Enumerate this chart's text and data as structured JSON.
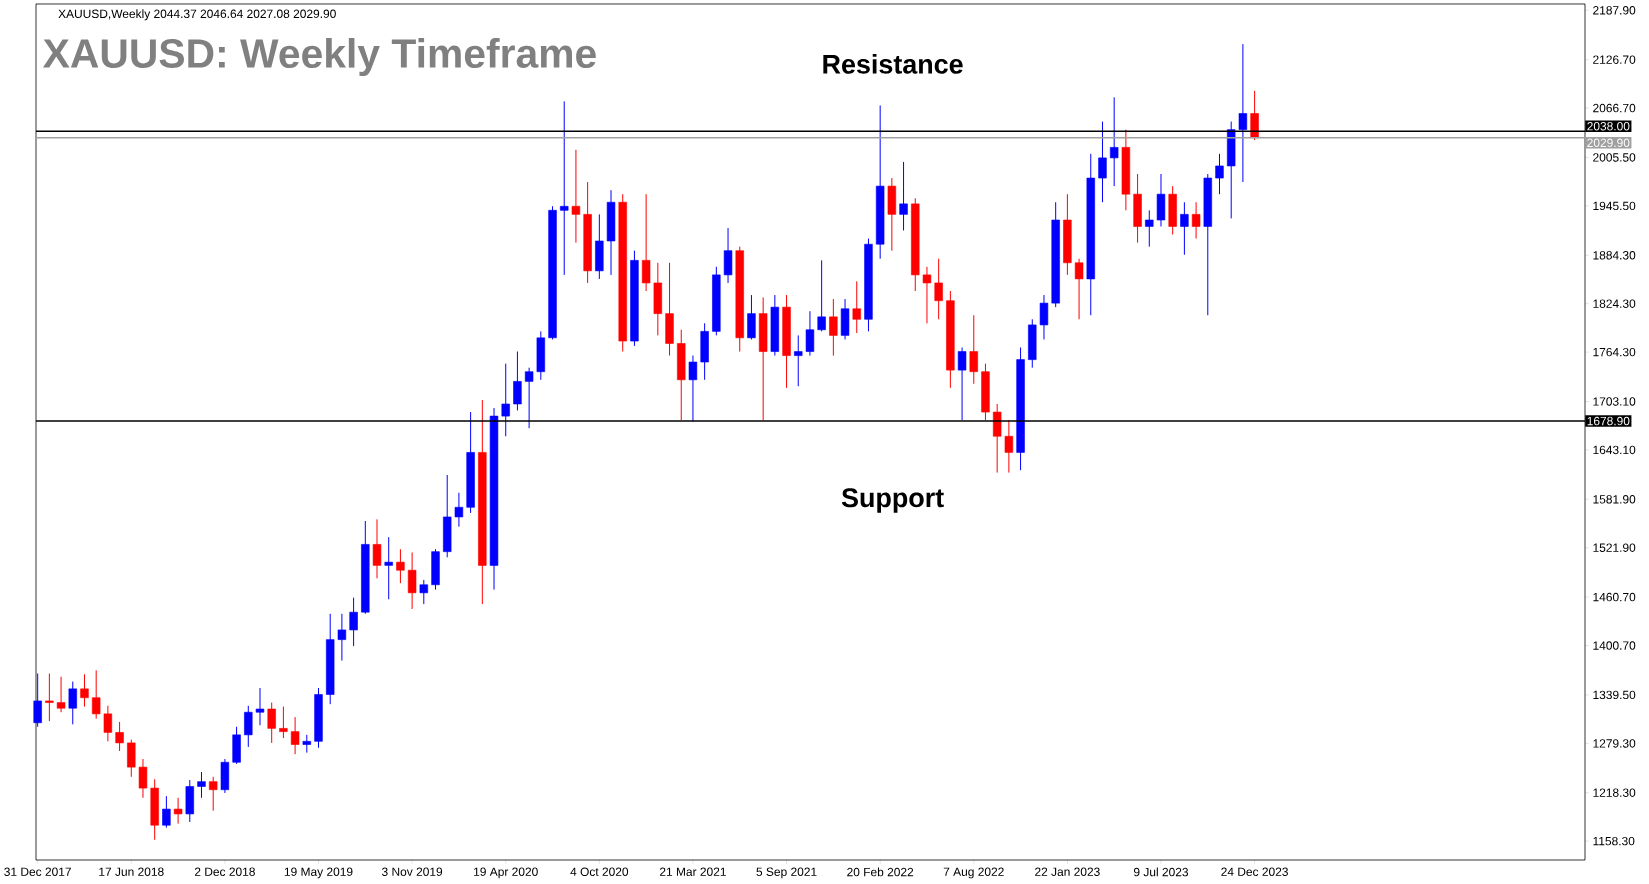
{
  "chart_data": {
    "type": "candlestick",
    "title": "XAUUSD: Weekly Timeframe",
    "annotations": [
      "XAUUSD,Weekly  2044.37 2046.64 2027.08 2029.90",
      "Resistance",
      "Support"
    ],
    "x": [
      "2017-12-31",
      "2018-01-21",
      "2018-02-11",
      "2018-03-04",
      "2018-03-25",
      "2018-04-15",
      "2018-05-06",
      "2018-05-27",
      "2018-06-17",
      "2018-07-08",
      "2018-07-29",
      "2018-08-19",
      "2018-09-09",
      "2018-09-30",
      "2018-10-21",
      "2018-11-11",
      "2018-12-02",
      "2018-12-23",
      "2019-01-13",
      "2019-02-03",
      "2019-02-24",
      "2019-03-17",
      "2019-04-07",
      "2019-04-28",
      "2019-05-19",
      "2019-06-09",
      "2019-06-30",
      "2019-07-21",
      "2019-08-11",
      "2019-09-01",
      "2019-09-22",
      "2019-10-13",
      "2019-11-03",
      "2019-11-24",
      "2019-12-15",
      "2020-01-05",
      "2020-01-26",
      "2020-02-16",
      "2020-03-08",
      "2020-03-29",
      "2020-04-19",
      "2020-05-10",
      "2020-05-31",
      "2020-06-21",
      "2020-07-12",
      "2020-08-02",
      "2020-08-23",
      "2020-09-13",
      "2020-10-04",
      "2020-10-25",
      "2020-11-15",
      "2020-12-06",
      "2020-12-27",
      "2021-01-17",
      "2021-02-07",
      "2021-02-28",
      "2021-03-21",
      "2021-04-11",
      "2021-05-02",
      "2021-05-23",
      "2021-06-13",
      "2021-07-04",
      "2021-07-25",
      "2021-08-15",
      "2021-09-05",
      "2021-09-26",
      "2021-10-17",
      "2021-11-07",
      "2021-11-28",
      "2021-12-19",
      "2022-01-09",
      "2022-01-30",
      "2022-02-20",
      "2022-03-13",
      "2022-04-03",
      "2022-04-24",
      "2022-05-15",
      "2022-06-05",
      "2022-06-26",
      "2022-07-17",
      "2022-08-07",
      "2022-08-28",
      "2022-09-18",
      "2022-10-09",
      "2022-10-30",
      "2022-11-20",
      "2022-12-11",
      "2023-01-01",
      "2023-01-22",
      "2023-02-12",
      "2023-03-05",
      "2023-03-26",
      "2023-04-16",
      "2023-05-07",
      "2023-05-28",
      "2023-06-18",
      "2023-07-09",
      "2023-07-30",
      "2023-08-20",
      "2023-09-10",
      "2023-10-01",
      "2023-10-22",
      "2023-11-12",
      "2023-12-03",
      "2023-12-24"
    ],
    "ohlc": [
      [
        1305,
        1366,
        1300,
        1332
      ],
      [
        1332,
        1366,
        1307,
        1330
      ],
      [
        1330,
        1362,
        1318,
        1323
      ],
      [
        1323,
        1356,
        1303,
        1347
      ],
      [
        1347,
        1365,
        1325,
        1336
      ],
      [
        1336,
        1370,
        1310,
        1316
      ],
      [
        1316,
        1326,
        1282,
        1293
      ],
      [
        1293,
        1306,
        1270,
        1280
      ],
      [
        1280,
        1284,
        1238,
        1250
      ],
      [
        1250,
        1260,
        1212,
        1224
      ],
      [
        1224,
        1235,
        1160,
        1178
      ],
      [
        1178,
        1214,
        1175,
        1198
      ],
      [
        1198,
        1212,
        1180,
        1192
      ],
      [
        1192,
        1234,
        1182,
        1226
      ],
      [
        1226,
        1244,
        1212,
        1232
      ],
      [
        1232,
        1238,
        1196,
        1222
      ],
      [
        1222,
        1260,
        1218,
        1256
      ],
      [
        1256,
        1300,
        1254,
        1290
      ],
      [
        1290,
        1326,
        1275,
        1318
      ],
      [
        1318,
        1348,
        1302,
        1322
      ],
      [
        1322,
        1330,
        1280,
        1298
      ],
      [
        1298,
        1325,
        1286,
        1294
      ],
      [
        1294,
        1312,
        1266,
        1278
      ],
      [
        1278,
        1290,
        1268,
        1282
      ],
      [
        1282,
        1348,
        1274,
        1340
      ],
      [
        1340,
        1440,
        1328,
        1408
      ],
      [
        1408,
        1440,
        1382,
        1420
      ],
      [
        1420,
        1460,
        1400,
        1442
      ],
      [
        1442,
        1555,
        1440,
        1526
      ],
      [
        1526,
        1557,
        1484,
        1500
      ],
      [
        1500,
        1535,
        1458,
        1504
      ],
      [
        1504,
        1520,
        1478,
        1494
      ],
      [
        1494,
        1516,
        1446,
        1466
      ],
      [
        1466,
        1482,
        1452,
        1476
      ],
      [
        1476,
        1520,
        1470,
        1517
      ],
      [
        1517,
        1612,
        1510,
        1560
      ],
      [
        1560,
        1590,
        1548,
        1572
      ],
      [
        1572,
        1690,
        1565,
        1640
      ],
      [
        1640,
        1705,
        1452,
        1500
      ],
      [
        1500,
        1695,
        1470,
        1685
      ],
      [
        1685,
        1750,
        1660,
        1700
      ],
      [
        1700,
        1765,
        1692,
        1728
      ],
      [
        1728,
        1745,
        1670,
        1740
      ],
      [
        1740,
        1790,
        1730,
        1782
      ],
      [
        1782,
        1945,
        1780,
        1940
      ],
      [
        1940,
        2075,
        1860,
        1945
      ],
      [
        1945,
        2015,
        1900,
        1935
      ],
      [
        1935,
        1975,
        1850,
        1865
      ],
      [
        1865,
        1935,
        1855,
        1902
      ],
      [
        1902,
        1965,
        1860,
        1950
      ],
      [
        1950,
        1960,
        1765,
        1778
      ],
      [
        1778,
        1890,
        1772,
        1878
      ],
      [
        1878,
        1960,
        1840,
        1850
      ],
      [
        1850,
        1875,
        1785,
        1812
      ],
      [
        1812,
        1875,
        1760,
        1775
      ],
      [
        1775,
        1792,
        1680,
        1730
      ],
      [
        1730,
        1760,
        1678,
        1752
      ],
      [
        1752,
        1800,
        1730,
        1790
      ],
      [
        1790,
        1870,
        1785,
        1860
      ],
      [
        1860,
        1918,
        1850,
        1890
      ],
      [
        1890,
        1895,
        1765,
        1782
      ],
      [
        1782,
        1835,
        1780,
        1812
      ],
      [
        1812,
        1832,
        1680,
        1765
      ],
      [
        1765,
        1835,
        1760,
        1820
      ],
      [
        1820,
        1835,
        1720,
        1760
      ],
      [
        1760,
        1785,
        1722,
        1765
      ],
      [
        1765,
        1815,
        1760,
        1792
      ],
      [
        1792,
        1878,
        1790,
        1808
      ],
      [
        1808,
        1830,
        1760,
        1785
      ],
      [
        1785,
        1830,
        1780,
        1818
      ],
      [
        1818,
        1852,
        1788,
        1805
      ],
      [
        1805,
        1905,
        1790,
        1898
      ],
      [
        1898,
        2070,
        1880,
        1970
      ],
      [
        1970,
        1980,
        1890,
        1935
      ],
      [
        1935,
        2000,
        1915,
        1948
      ],
      [
        1948,
        1955,
        1840,
        1860
      ],
      [
        1860,
        1870,
        1800,
        1850
      ],
      [
        1850,
        1880,
        1805,
        1828
      ],
      [
        1828,
        1840,
        1720,
        1742
      ],
      [
        1742,
        1770,
        1680,
        1765
      ],
      [
        1765,
        1810,
        1725,
        1740
      ],
      [
        1740,
        1750,
        1680,
        1690
      ],
      [
        1690,
        1700,
        1615,
        1660
      ],
      [
        1660,
        1680,
        1615,
        1640
      ],
      [
        1640,
        1770,
        1618,
        1755
      ],
      [
        1755,
        1805,
        1745,
        1798
      ],
      [
        1798,
        1835,
        1780,
        1825
      ],
      [
        1825,
        1950,
        1820,
        1928
      ],
      [
        1928,
        1960,
        1860,
        1875
      ],
      [
        1875,
        1880,
        1805,
        1855
      ],
      [
        1855,
        2010,
        1810,
        1980
      ],
      [
        1980,
        2050,
        1950,
        2005
      ],
      [
        2005,
        2080,
        1970,
        2018
      ],
      [
        2018,
        2040,
        1940,
        1960
      ],
      [
        1960,
        1985,
        1900,
        1920
      ],
      [
        1920,
        1940,
        1895,
        1928
      ],
      [
        1928,
        1985,
        1920,
        1960
      ],
      [
        1960,
        1970,
        1910,
        1920
      ],
      [
        1920,
        1950,
        1885,
        1935
      ],
      [
        1935,
        1950,
        1905,
        1920
      ],
      [
        1920,
        1985,
        1810,
        1980
      ],
      [
        1980,
        2010,
        1960,
        1995
      ],
      [
        1995,
        2050,
        1930,
        2040
      ],
      [
        2040,
        2146,
        1975,
        2060
      ],
      [
        2060,
        2088,
        2027,
        2030
      ]
    ],
    "colors": [
      "#0000ff",
      "#ff0000",
      "#ff0000",
      "#0000ff",
      "#ff0000",
      "#ff0000",
      "#ff0000",
      "#ff0000",
      "#ff0000",
      "#ff0000",
      "#ff0000",
      "#0000ff",
      "#ff0000",
      "#0000ff",
      "#0000ff",
      "#ff0000",
      "#0000ff",
      "#0000ff",
      "#0000ff",
      "#0000ff",
      "#ff0000",
      "#ff0000",
      "#ff0000",
      "#0000ff",
      "#0000ff",
      "#0000ff",
      "#0000ff",
      "#0000ff",
      "#0000ff",
      "#ff0000",
      "#0000ff",
      "#ff0000",
      "#ff0000",
      "#0000ff",
      "#0000ff",
      "#0000ff",
      "#0000ff",
      "#0000ff",
      "#ff0000",
      "#0000ff",
      "#0000ff",
      "#0000ff",
      "#0000ff",
      "#0000ff",
      "#0000ff",
      "#0000ff",
      "#ff0000",
      "#ff0000",
      "#0000ff",
      "#0000ff",
      "#ff0000",
      "#0000ff",
      "#ff0000",
      "#ff0000",
      "#ff0000",
      "#ff0000",
      "#0000ff",
      "#0000ff",
      "#0000ff",
      "#0000ff",
      "#ff0000",
      "#0000ff",
      "#ff0000",
      "#0000ff",
      "#ff0000",
      "#0000ff",
      "#0000ff",
      "#0000ff",
      "#ff0000",
      "#0000ff",
      "#ff0000",
      "#0000ff",
      "#0000ff",
      "#ff0000",
      "#0000ff",
      "#ff0000",
      "#ff0000",
      "#ff0000",
      "#ff0000",
      "#0000ff",
      "#ff0000",
      "#ff0000",
      "#ff0000",
      "#ff0000",
      "#0000ff",
      "#0000ff",
      "#0000ff",
      "#0000ff",
      "#ff0000",
      "#ff0000",
      "#0000ff",
      "#0000ff",
      "#0000ff",
      "#ff0000",
      "#ff0000",
      "#0000ff",
      "#0000ff",
      "#ff0000",
      "#0000ff",
      "#ff0000",
      "#0000ff",
      "#0000ff",
      "#0000ff",
      "#0000ff",
      "#ff0000"
    ],
    "xlim": [
      "2017-12-28",
      "2025-08-08"
    ],
    "xticks": [
      {
        "value": "2017-12-31",
        "label": "31 Dec 2017"
      },
      {
        "value": "2018-06-17",
        "label": "17 Jun 2018"
      },
      {
        "value": "2018-12-02",
        "label": "2 Dec 2018"
      },
      {
        "value": "2019-05-19",
        "label": "19 May 2019"
      },
      {
        "value": "2019-11-03",
        "label": "3 Nov 2019"
      },
      {
        "value": "2020-04-19",
        "label": "19 Apr 2020"
      },
      {
        "value": "2020-10-04",
        "label": "4 Oct 2020"
      },
      {
        "value": "2021-03-21",
        "label": "21 Mar 2021"
      },
      {
        "value": "2021-09-05",
        "label": "5 Sep 2021"
      },
      {
        "value": "2022-02-20",
        "label": "20 Feb 2022"
      },
      {
        "value": "2022-08-07",
        "label": "7 Aug 2022"
      },
      {
        "value": "2023-01-22",
        "label": "22 Jan 2023"
      },
      {
        "value": "2023-07-09",
        "label": "9 Jul 2023"
      },
      {
        "value": "2023-12-24",
        "label": "24 Dec 2023"
      }
    ],
    "ylim": [
      1134.9,
      2195.7
    ],
    "yticks": [
      {
        "value": 1158.3,
        "label": "1158.30"
      },
      {
        "value": 1218.3,
        "label": "1218.30"
      },
      {
        "value": 1279.3,
        "label": "1279.30"
      },
      {
        "value": 1339.5,
        "label": "1339.50"
      },
      {
        "value": 1400.7,
        "label": "1400.70"
      },
      {
        "value": 1460.7,
        "label": "1460.70"
      },
      {
        "value": 1521.9,
        "label": "1521.90"
      },
      {
        "value": 1581.9,
        "label": "1581.90"
      },
      {
        "value": 1643.1,
        "label": "1643.10"
      },
      {
        "value": 1703.1,
        "label": "1703.10"
      },
      {
        "value": 1764.3,
        "label": "1764.30"
      },
      {
        "value": 1824.3,
        "label": "1824.30"
      },
      {
        "value": 1884.3,
        "label": "1884.30"
      },
      {
        "value": 1945.5,
        "label": "1945.50"
      },
      {
        "value": 2005.5,
        "label": "2005.50"
      },
      {
        "value": 2066.7,
        "label": "2066.70"
      },
      {
        "value": 2126.7,
        "label": "2126.70"
      },
      {
        "value": 2187.9,
        "label": "2187.90"
      }
    ],
    "ref_lines": [
      {
        "axis": "y",
        "value": 2038.0,
        "label": "2038.00",
        "color": "#000000"
      },
      {
        "axis": "y",
        "value": 2029.9,
        "label": "2029.90",
        "color": "#a0a0a0"
      },
      {
        "axis": "y",
        "value": 1678.9,
        "label": "1678.90",
        "color": "#000000"
      }
    ]
  }
}
